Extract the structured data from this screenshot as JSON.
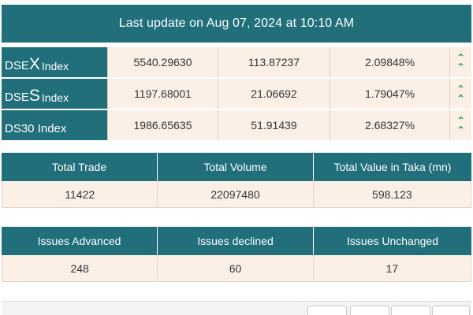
{
  "header": {
    "last_update": "Last update on Aug 07, 2024 at 10:10 AM"
  },
  "indices": [
    {
      "name_prefix": "DSE",
      "name_big": "X",
      "name_suffix": "Index",
      "value": "5540.29630",
      "change": "113.87237",
      "percent": "2.09848%",
      "trend_icon": "double-chevron-up-icon"
    },
    {
      "name_prefix": "DSE",
      "name_big": "S",
      "name_suffix": "Index",
      "value": "1197.68001",
      "change": "21.06692",
      "percent": "1.79047%",
      "trend_icon": "double-chevron-up-icon"
    },
    {
      "name_prefix": "DS30 Index",
      "name_big": "",
      "name_suffix": "",
      "value": "1986.65635",
      "change": "51.91439",
      "percent": "2.68327%",
      "trend_icon": "double-chevron-up-icon"
    }
  ],
  "trade_summary": {
    "headers": [
      "Total Trade",
      "Total Volume",
      "Total Value in Taka (mn)"
    ],
    "values": [
      "11422",
      "22097480",
      "598.123"
    ]
  },
  "issues_summary": {
    "headers": [
      "Issues Advanced",
      "Issues declined",
      "Issues Unchanged"
    ],
    "values": [
      "248",
      "60",
      "17"
    ]
  },
  "colors": {
    "header_bg": "#206f7a",
    "cell_bg": "#fbefe6",
    "up_arrow": "#2e9a3f"
  }
}
